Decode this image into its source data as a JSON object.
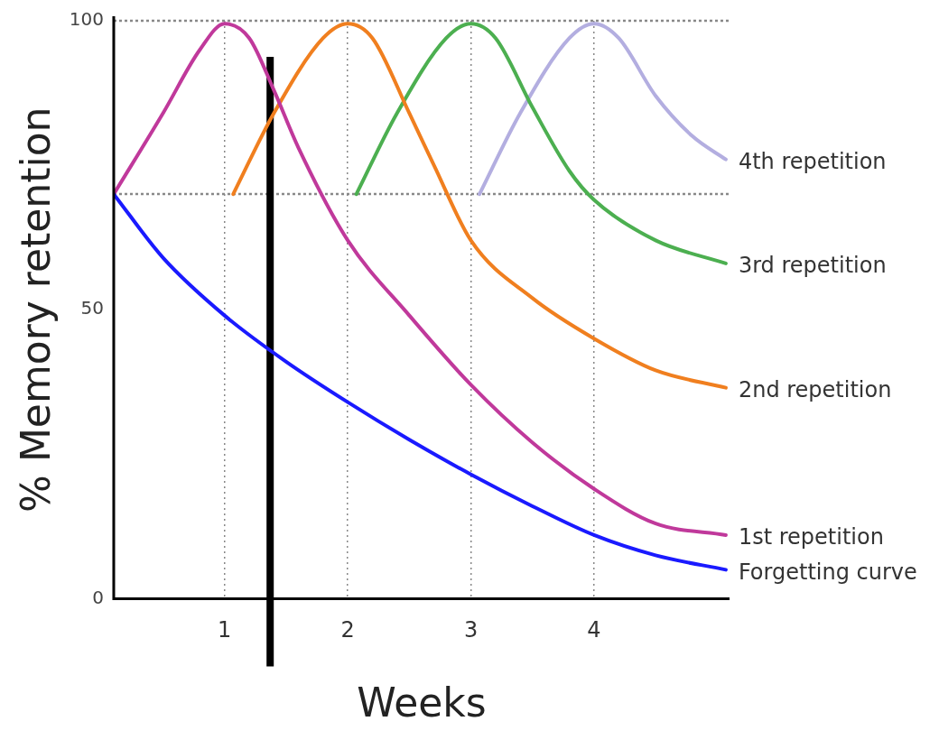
{
  "chart_data": {
    "type": "line",
    "xlabel": "Weeks",
    "ylabel": "% Memory retention",
    "xlim": [
      0.1,
      5.1
    ],
    "xticks": [
      1,
      2,
      3,
      4
    ],
    "ylim": [
      0,
      100
    ],
    "yticks": [
      0,
      50,
      100
    ],
    "grid": "x",
    "marker": "none",
    "line_style": "solid",
    "ref_lines": [
      {
        "axis": "y",
        "value": 100,
        "color": "#888888",
        "line_style": "dotted"
      },
      {
        "axis": "y",
        "value": 70,
        "color": "#888888",
        "line_style": "dotted"
      },
      {
        "axis": "x",
        "value": 1.37,
        "color": "#000000",
        "line_style": "solid"
      }
    ],
    "series": [
      {
        "name": "Forgetting curve",
        "color": "#1a1aff",
        "x": [
          0.1,
          0.5,
          1,
          1.5,
          2,
          2.5,
          3,
          3.5,
          4,
          4.5,
          5.07
        ],
        "values": [
          70,
          59,
          49,
          41,
          34,
          27.5,
          21.5,
          16,
          11,
          7.5,
          5
        ]
      },
      {
        "name": "1st repetition",
        "color": "#c0399b",
        "x": [
          0.1,
          0.5,
          0.8,
          1,
          1.2,
          1.4,
          1.6,
          2,
          2.5,
          3,
          3.5,
          4,
          4.5,
          5.07
        ],
        "values": [
          70,
          84,
          95,
          99.5,
          97,
          88,
          78,
          62,
          49,
          37,
          27,
          19,
          13,
          11
        ]
      },
      {
        "name": "2nd repetition",
        "color": "#f07f1f",
        "x": [
          1.07,
          1.4,
          1.8,
          2,
          2.2,
          2.5,
          2.7,
          3,
          3.5,
          4,
          4.5,
          5.07
        ],
        "values": [
          70,
          84,
          97,
          99.5,
          97,
          84,
          75,
          62,
          52,
          45,
          39.5,
          36.5
        ]
      },
      {
        "name": "3rd repetition",
        "color": "#4caf50",
        "x": [
          2.07,
          2.4,
          2.8,
          3,
          3.2,
          3.5,
          3.8,
          4,
          4.5,
          5.07
        ],
        "values": [
          70,
          84,
          97,
          99.5,
          97,
          85,
          74,
          69,
          62,
          58
        ]
      },
      {
        "name": "4th repetition",
        "color": "#b3aee0",
        "x": [
          3.07,
          3.4,
          3.8,
          4,
          4.2,
          4.5,
          4.8,
          5.07
        ],
        "values": [
          70,
          84,
          97,
          99.5,
          97,
          87,
          80,
          76
        ]
      }
    ]
  }
}
